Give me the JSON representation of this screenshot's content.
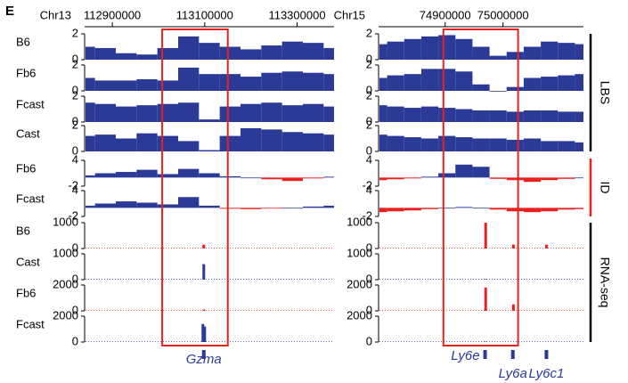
{
  "panel_label": "E",
  "groups": [
    {
      "label": "LBS",
      "color": "#000000"
    },
    {
      "label": "ID",
      "color": "#e8201e"
    },
    {
      "label": "RNA-seq",
      "color": "#000000"
    }
  ],
  "chart_data": [
    {
      "type": "tracks",
      "chrom": "Chr13",
      "xlim": [
        112840000,
        113380000
      ],
      "xticks": [
        112900000,
        113100000,
        113300000
      ],
      "highlight": [
        113008000,
        113150000
      ],
      "x": [
        112840000,
        112885000,
        112930000,
        112975000,
        113020000,
        113065000,
        113110000,
        113155000,
        113200000,
        113245000,
        113290000,
        113335000,
        113380000
      ],
      "tracks": [
        {
          "name": "B6",
          "ylim": [
            0,
            2
          ],
          "yticks": [
            0,
            2
          ],
          "color": "#2b3a97",
          "values": [
            1.0,
            0.9,
            0.5,
            0.4,
            0.9,
            1.8,
            1.3,
            1.0,
            0.8,
            1.1,
            1.4,
            1.3,
            0.9
          ]
        },
        {
          "name": "Fb6",
          "ylim": [
            0,
            2
          ],
          "yticks": [
            0,
            2
          ],
          "color": "#2b3a97",
          "values": [
            1.0,
            0.8,
            0.8,
            0.9,
            0.8,
            1.8,
            1.3,
            1.3,
            1.1,
            1.4,
            1.5,
            1.4,
            1.3
          ]
        },
        {
          "name": "Fcast",
          "ylim": [
            0,
            2
          ],
          "yticks": [
            0,
            2
          ],
          "color": "#2b3a97",
          "values": [
            1.5,
            1.4,
            1.2,
            1.3,
            1.4,
            1.5,
            0.2,
            1.2,
            1.4,
            1.5,
            1.3,
            1.4,
            1.2
          ]
        },
        {
          "name": "Cast",
          "ylim": [
            0,
            2
          ],
          "yticks": [
            0,
            2
          ],
          "color": "#2b3a97",
          "values": [
            1.2,
            1.3,
            1.0,
            1.4,
            1.2,
            0.8,
            0.1,
            1.2,
            1.8,
            1.7,
            1.5,
            1.4,
            1.3
          ]
        },
        {
          "name": "Fb6",
          "ylim": [
            -2,
            4
          ],
          "yticks": [
            -2,
            4
          ],
          "color": "#2b3a97",
          "negative_color": "#e8201e",
          "values": [
            0.5,
            1.0,
            1.3,
            1.8,
            0.8,
            2.0,
            1.0,
            0.3,
            0.0,
            -0.4,
            -0.8,
            -0.2,
            0.2
          ]
        },
        {
          "name": "Fcast",
          "ylim": [
            -2,
            4
          ],
          "yticks": [
            -2,
            4
          ],
          "color": "#2b3a97",
          "negative_color": "#e8201e",
          "values": [
            0.5,
            1.0,
            1.5,
            1.2,
            0.8,
            2.5,
            0.5,
            -0.2,
            -0.3,
            -0.1,
            0.0,
            0.3,
            0.5
          ]
        },
        {
          "name": "B6",
          "ylim": [
            0,
            1000
          ],
          "yticks": [
            0,
            1000
          ],
          "color": "#e8201e",
          "peaks": {
            "x": [
              113098000
            ],
            "values": [
              150
            ]
          }
        },
        {
          "name": "Cast",
          "ylim": [
            0,
            1000
          ],
          "yticks": [
            0,
            1000
          ],
          "color": "#2b3a97",
          "peaks": {
            "x": [
              113098000
            ],
            "values": [
              600
            ]
          }
        },
        {
          "name": "Fb6",
          "ylim": [
            0,
            2000
          ],
          "yticks": [
            0,
            2000
          ],
          "color": "#e8201e",
          "peaks": {
            "x": [
              113098000
            ],
            "values": [
              100
            ]
          }
        },
        {
          "name": "Fcast",
          "ylim": [
            0,
            2000
          ],
          "yticks": [
            0,
            2000
          ],
          "color": "#2b3a97",
          "peaks": {
            "x": [
              113096000,
              113100000
            ],
            "values": [
              1400,
              1200
            ]
          }
        }
      ],
      "genes": [
        {
          "name": "Gzma",
          "x": 113098000
        }
      ]
    },
    {
      "type": "tracks",
      "chrom": "Chr15",
      "xlim": [
        74785000,
        75139000
      ],
      "xticks": [
        74900000,
        75000000
      ],
      "highlight": [
        74897000,
        75026000
      ],
      "x": [
        74785000,
        74814500,
        74844000,
        74873500,
        74903000,
        74932500,
        74962000,
        74991500,
        75021000,
        75050500,
        75080000,
        75109500,
        75139000
      ],
      "tracks": [
        {
          "ylim": [
            0,
            2
          ],
          "yticks": [
            0,
            2
          ],
          "color": "#2b3a97",
          "values": [
            1.2,
            1.4,
            1.6,
            1.8,
            1.9,
            1.6,
            1.0,
            0.3,
            0.6,
            1.0,
            1.4,
            1.3,
            1.2
          ]
        },
        {
          "ylim": [
            0,
            2
          ],
          "yticks": [
            0,
            2
          ],
          "color": "#2b3a97",
          "values": [
            1.0,
            1.2,
            1.3,
            1.7,
            1.7,
            1.5,
            0.5,
            0.0,
            0.3,
            1.0,
            1.1,
            1.2,
            1.3
          ]
        },
        {
          "ylim": [
            0,
            2
          ],
          "yticks": [
            0,
            2
          ],
          "color": "#2b3a97",
          "values": [
            1.3,
            1.2,
            1.1,
            1.2,
            1.1,
            1.0,
            0.9,
            0.9,
            0.8,
            0.9,
            0.9,
            0.8,
            0.8
          ]
        },
        {
          "ylim": [
            0,
            2
          ],
          "yticks": [
            0,
            2
          ],
          "color": "#2b3a97",
          "values": [
            1.3,
            1.2,
            1.1,
            1.0,
            1.2,
            1.1,
            1.0,
            1.0,
            0.9,
            1.0,
            0.8,
            0.8,
            0.7
          ]
        },
        {
          "ylim": [
            -2,
            4
          ],
          "yticks": [
            -2,
            4
          ],
          "color": "#2b3a97",
          "negative_color": "#e8201e",
          "values": [
            -0.6,
            -0.4,
            -0.2,
            0.2,
            1.0,
            3.0,
            2.5,
            -0.3,
            -0.6,
            -1.0,
            -0.6,
            -0.3,
            0.0
          ]
        },
        {
          "ylim": [
            -2,
            4
          ],
          "yticks": [
            -2,
            4
          ],
          "color": "#2b3a97",
          "negative_color": "#e8201e",
          "values": [
            -1.0,
            -0.8,
            -0.6,
            -0.3,
            0.0,
            0.2,
            0.0,
            -0.4,
            -0.8,
            -1.0,
            -0.8,
            -0.4,
            -0.3
          ]
        },
        {
          "ylim": [
            0,
            1000
          ],
          "yticks": [
            0,
            1000
          ],
          "color": "#e8201e",
          "peaks": {
            "x": [
              74970000,
              75018000,
              75075000
            ],
            "values": [
              1000,
              150,
              150
            ]
          }
        },
        {
          "ylim": [
            0,
            1000
          ],
          "yticks": [
            0,
            1000
          ],
          "color": "#2b3a97",
          "peaks": {
            "x": [
              74970000
            ],
            "values": [
              20
            ]
          }
        },
        {
          "ylim": [
            0,
            2000
          ],
          "yticks": [
            0,
            2000
          ],
          "color": "#e8201e",
          "peaks": {
            "x": [
              74970000,
              75018000
            ],
            "values": [
              1800,
              500
            ]
          }
        },
        {
          "ylim": [
            0,
            2000
          ],
          "yticks": [
            0,
            2000
          ],
          "color": "#2b3a97",
          "peaks": {
            "x": [
              74970000
            ],
            "values": [
              30
            ]
          }
        }
      ],
      "genes": [
        {
          "name": "Ly6e",
          "x": 74969000
        },
        {
          "name": "Ly6a",
          "x": 75017000
        },
        {
          "name": "Ly6c1",
          "x": 75075000
        }
      ]
    }
  ]
}
